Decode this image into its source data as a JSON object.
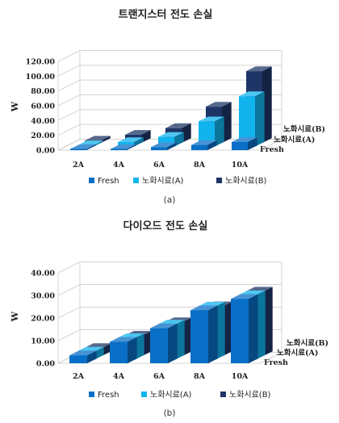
{
  "chart_data": [
    {
      "type": "bar",
      "title": "트랜지스터 전도 손실",
      "caption": "(a)",
      "ylabel": "W",
      "categories": [
        "2A",
        "4A",
        "6A",
        "8A",
        "10A"
      ],
      "ylim": [
        0,
        120
      ],
      "yticks": [
        "0.00",
        "20.00",
        "40.00",
        "60.00",
        "80.00",
        "100.00",
        "120.00"
      ],
      "series": [
        {
          "name": "Fresh",
          "values": [
            0.3,
            1.5,
            4,
            7,
            11
          ],
          "color": "#0A6FC6"
        },
        {
          "name": "노화시료(A)",
          "values": [
            1.5,
            6,
            13,
            34,
            68
          ],
          "color": "#12B4EE"
        },
        {
          "name": "노화시료(B)",
          "values": [
            3,
            11,
            20,
            49,
            97
          ],
          "color": "#1E3567"
        }
      ],
      "series_axis_labels": [
        "노화시료(B)",
        "노화시료(A)",
        "Fresh"
      ],
      "grid": true,
      "legend": "bottom"
    },
    {
      "type": "bar",
      "title": "다이오드 전도 손실",
      "caption": "(b)",
      "ylabel": "W",
      "categories": [
        "2A",
        "4A",
        "6A",
        "8A",
        "10A"
      ],
      "ylim": [
        0,
        40
      ],
      "yticks": [
        "0.00",
        "10.00",
        "20.00",
        "30.00",
        "40.00"
      ],
      "series": [
        {
          "name": "Fresh",
          "values": [
            3.5,
            9.5,
            15.5,
            23.5,
            28.5
          ],
          "color": "#0A6FC6"
        },
        {
          "name": "노화시료(A)",
          "values": [
            3.5,
            9.5,
            15.5,
            23.5,
            28.5
          ],
          "color": "#12B4EE"
        },
        {
          "name": "노화시료(B)",
          "values": [
            3.5,
            9,
            15,
            22,
            28.5
          ],
          "color": "#1E3567"
        }
      ],
      "series_axis_labels": [
        "노화시료(B)",
        "노화시료(A)",
        "Fresh"
      ],
      "grid": true,
      "legend": "bottom"
    }
  ]
}
